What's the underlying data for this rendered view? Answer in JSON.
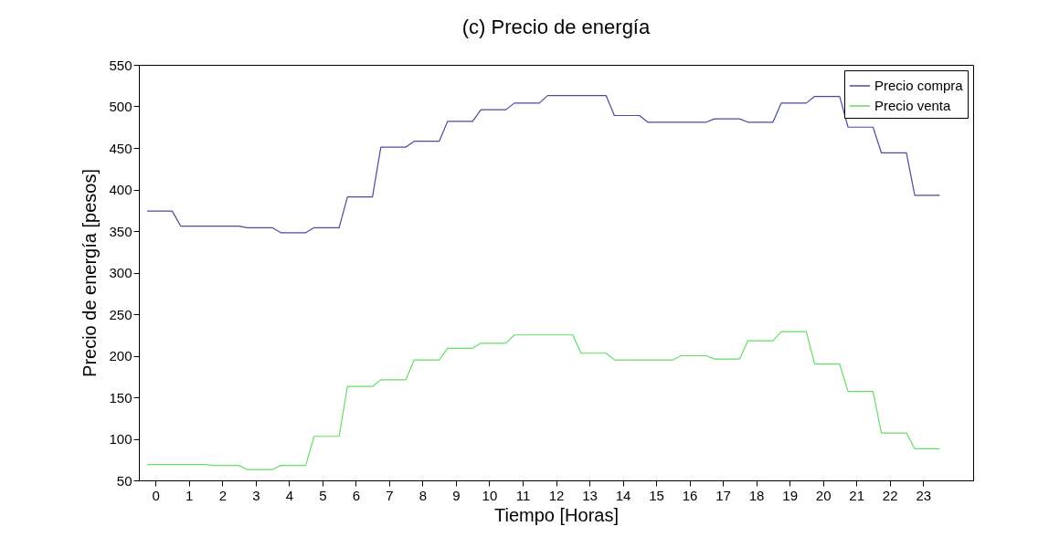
{
  "chart_data": {
    "type": "line",
    "title": "(c) Precio de energía",
    "xlabel": "Tiempo [Horas]",
    "ylabel": "Precio de energía [pesos]",
    "x": [
      -0.25,
      0.5,
      0.75,
      1.5,
      1.75,
      2.5,
      2.75,
      3.5,
      3.75,
      4.5,
      4.75,
      5.5,
      5.75,
      6.5,
      6.75,
      7.5,
      7.75,
      8.5,
      8.75,
      9.5,
      9.75,
      10.5,
      10.75,
      11.5,
      11.75,
      12.5,
      12.75,
      13.5,
      13.75,
      14.5,
      14.75,
      15.5,
      15.75,
      16.5,
      16.75,
      17.5,
      17.75,
      18.5,
      18.75,
      19.5,
      19.75,
      20.5,
      20.75,
      21.5,
      21.75,
      22.5,
      22.75,
      23.5
    ],
    "series": [
      {
        "name": "Precio compra",
        "color": "#4b4b9e",
        "values": [
          374,
          374,
          356,
          356,
          356,
          356,
          354,
          354,
          348,
          348,
          354,
          354,
          391,
          391,
          451,
          451,
          458,
          458,
          482,
          482,
          496,
          496,
          504,
          504,
          513,
          513,
          513,
          513,
          489,
          489,
          481,
          481,
          481,
          481,
          485,
          485,
          481,
          481,
          504,
          504,
          512,
          512,
          475,
          475,
          444,
          444,
          393,
          393
        ]
      },
      {
        "name": "Precio venta",
        "color": "#66dd66",
        "values": [
          69,
          69,
          69,
          69,
          68,
          68,
          63,
          63,
          68,
          68,
          103,
          103,
          163,
          163,
          171,
          171,
          195,
          195,
          209,
          209,
          215,
          215,
          225,
          225,
          225,
          225,
          203,
          203,
          195,
          195,
          195,
          195,
          200,
          200,
          196,
          196,
          218,
          218,
          229,
          229,
          190,
          190,
          157,
          157,
          107,
          107,
          88,
          88
        ]
      }
    ],
    "xlim": [
      -0.5,
      24.5
    ],
    "xticks": [
      0,
      1,
      2,
      3,
      4,
      5,
      6,
      7,
      8,
      9,
      10,
      11,
      12,
      13,
      14,
      15,
      16,
      17,
      18,
      19,
      20,
      21,
      22,
      23
    ],
    "ylim": [
      50,
      550
    ],
    "yticks": [
      50,
      100,
      150,
      200,
      250,
      300,
      350,
      400,
      450,
      500,
      550
    ],
    "legend": "top right",
    "grid": false,
    "line_style": "solid"
  }
}
